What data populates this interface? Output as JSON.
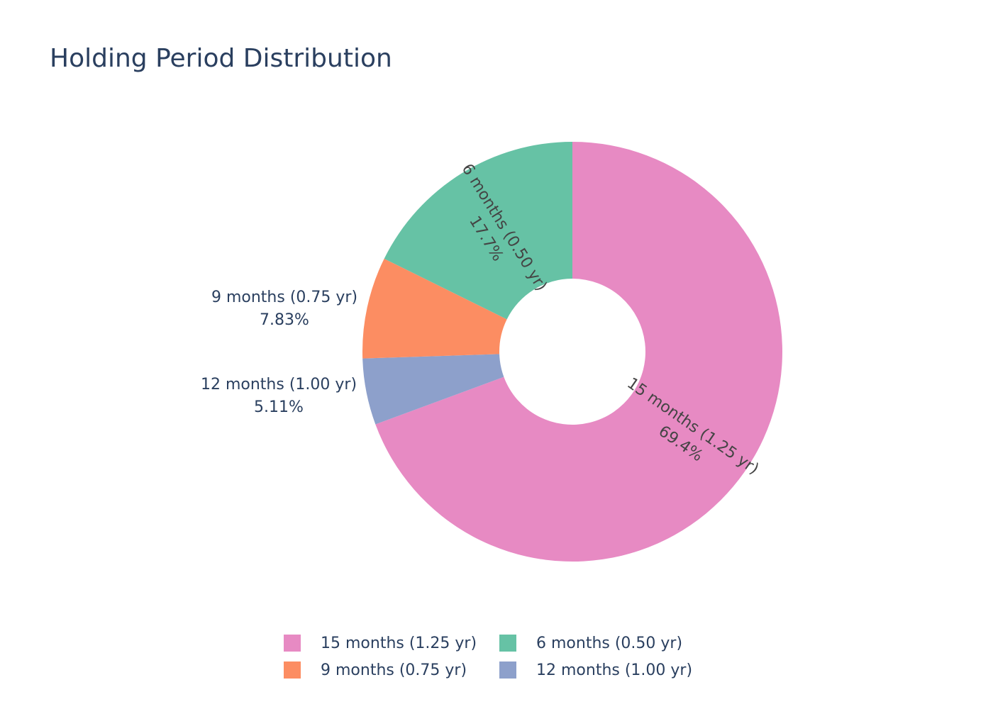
{
  "chart_data": {
    "type": "pie",
    "hole": true,
    "title": "Holding Period Distribution",
    "slices": [
      {
        "label": "15 months (1.25 yr)",
        "percent_text": "69.4%",
        "value": 69.4,
        "color": "#e78ac3",
        "text_position": "inside"
      },
      {
        "label": "12 months (1.00 yr)",
        "percent_text": "5.11%",
        "value": 5.11,
        "color": "#8da0cb",
        "text_position": "outside"
      },
      {
        "label": "9 months (0.75 yr)",
        "percent_text": "7.83%",
        "value": 7.83,
        "color": "#fc8d62",
        "text_position": "outside"
      },
      {
        "label": "6 months (0.50 yr)",
        "percent_text": "17.7%",
        "value": 17.7,
        "color": "#66c2a5",
        "text_position": "inside"
      }
    ],
    "legend": {
      "placement": "bottom",
      "items": [
        {
          "label": "15 months (1.25 yr)",
          "color": "#e78ac3"
        },
        {
          "label": "6 months (0.50 yr)",
          "color": "#66c2a5"
        },
        {
          "label": "9 months (0.75 yr)",
          "color": "#fc8d62"
        },
        {
          "label": "12 months (1.00 yr)",
          "color": "#8da0cb"
        }
      ]
    }
  }
}
